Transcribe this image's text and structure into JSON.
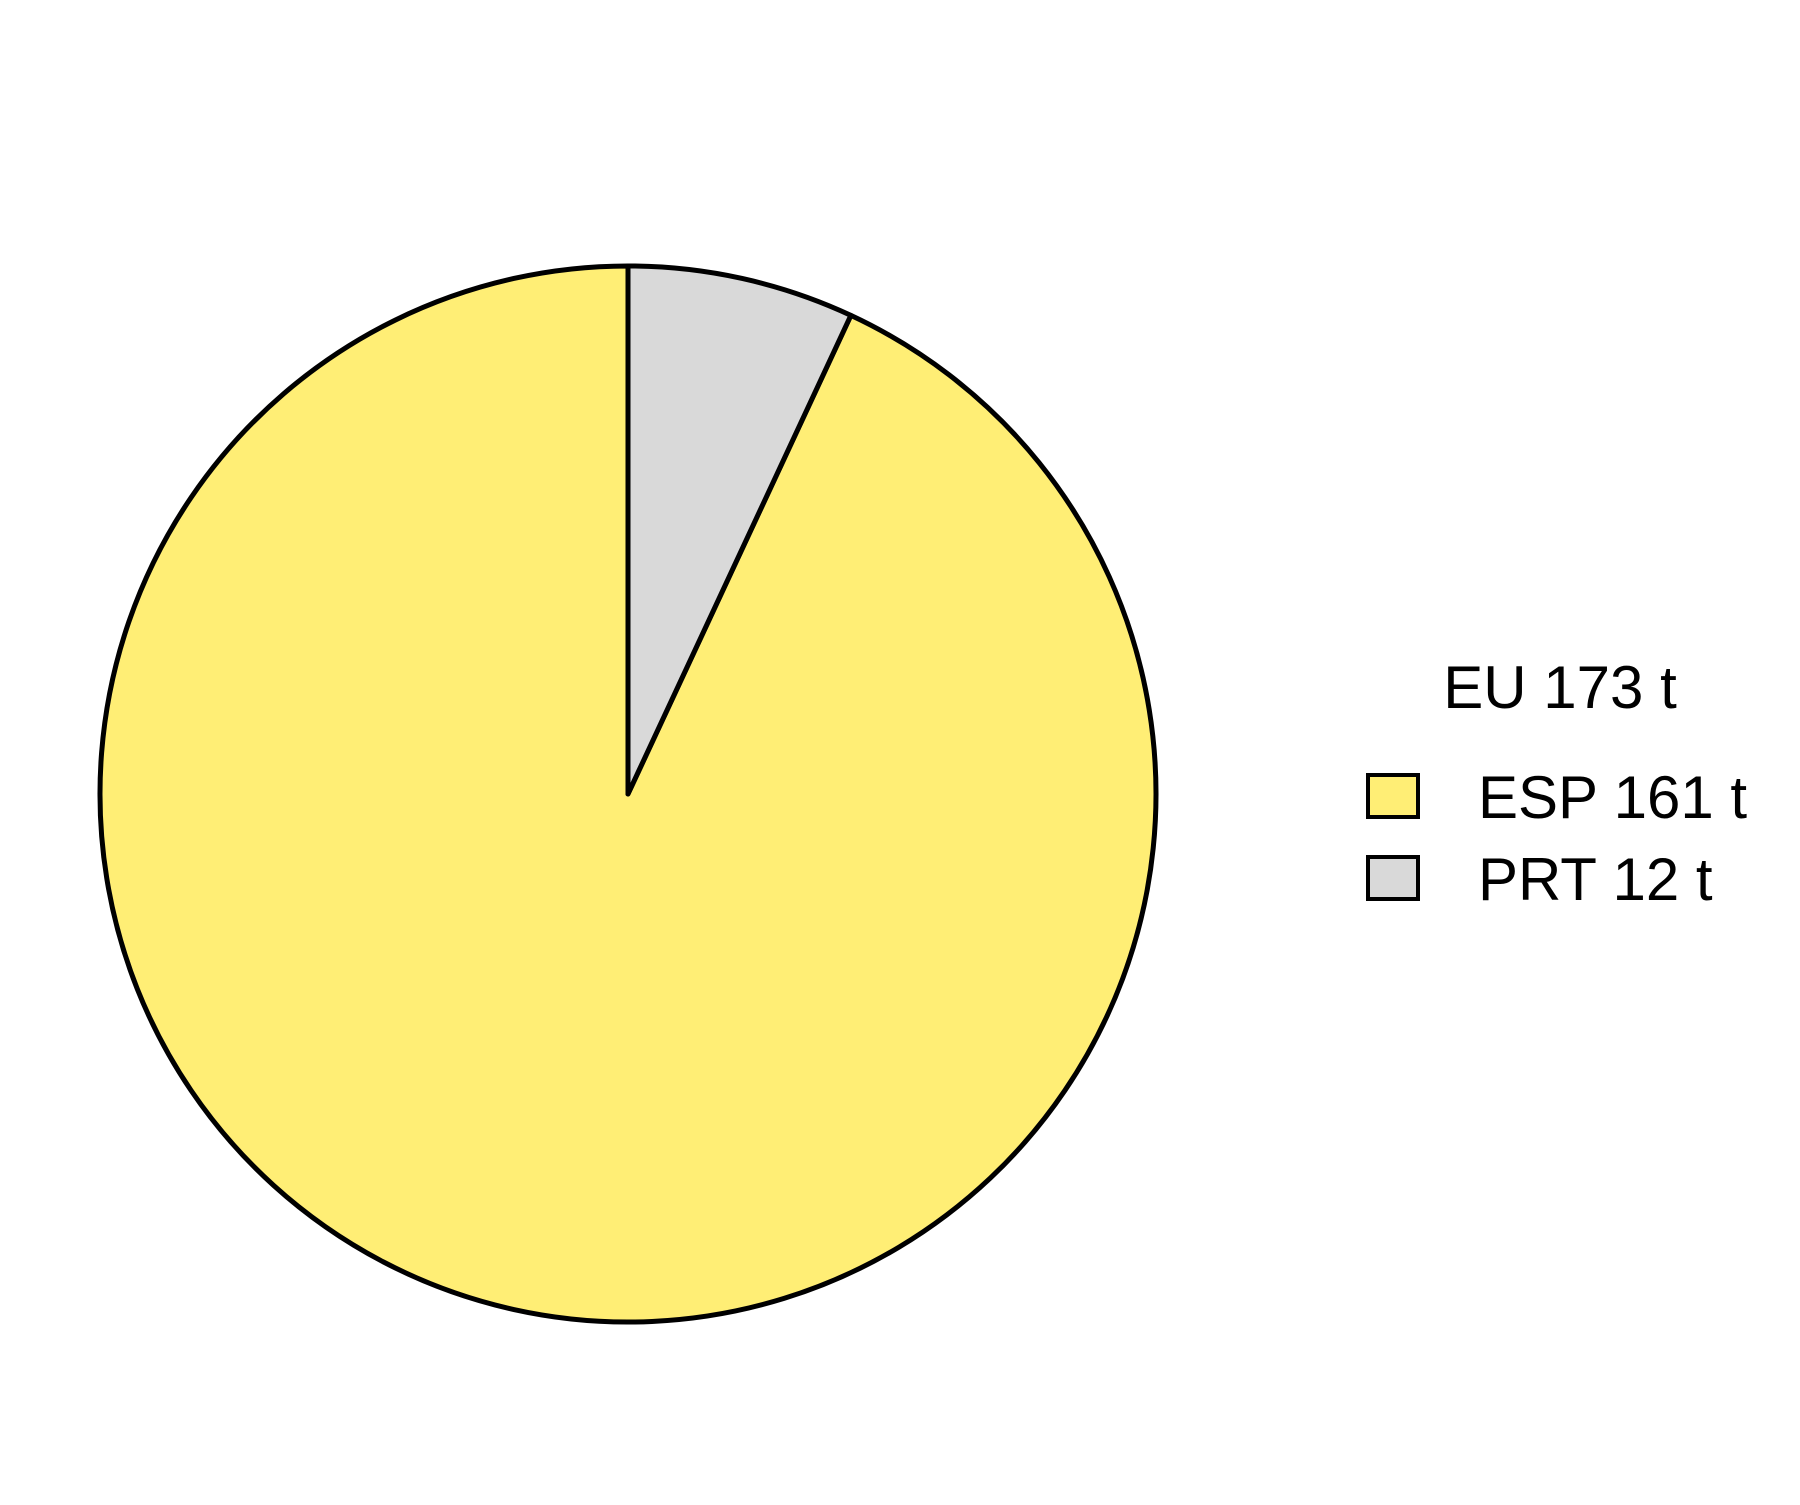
{
  "chart_data": {
    "type": "pie",
    "title": "",
    "legend_title": "EU 173 t",
    "legend_position": "right",
    "start": "top",
    "direction": "counterclockwise",
    "slices": [
      {
        "label": "ESP 161 t",
        "category": "ESP",
        "value": 161,
        "unit": "t",
        "color": "#FFEE75"
      },
      {
        "label": "PRT 12 t",
        "category": "PRT",
        "value": 12,
        "unit": "t",
        "color": "#D9D9D9"
      }
    ],
    "stroke_color": "#000000"
  }
}
